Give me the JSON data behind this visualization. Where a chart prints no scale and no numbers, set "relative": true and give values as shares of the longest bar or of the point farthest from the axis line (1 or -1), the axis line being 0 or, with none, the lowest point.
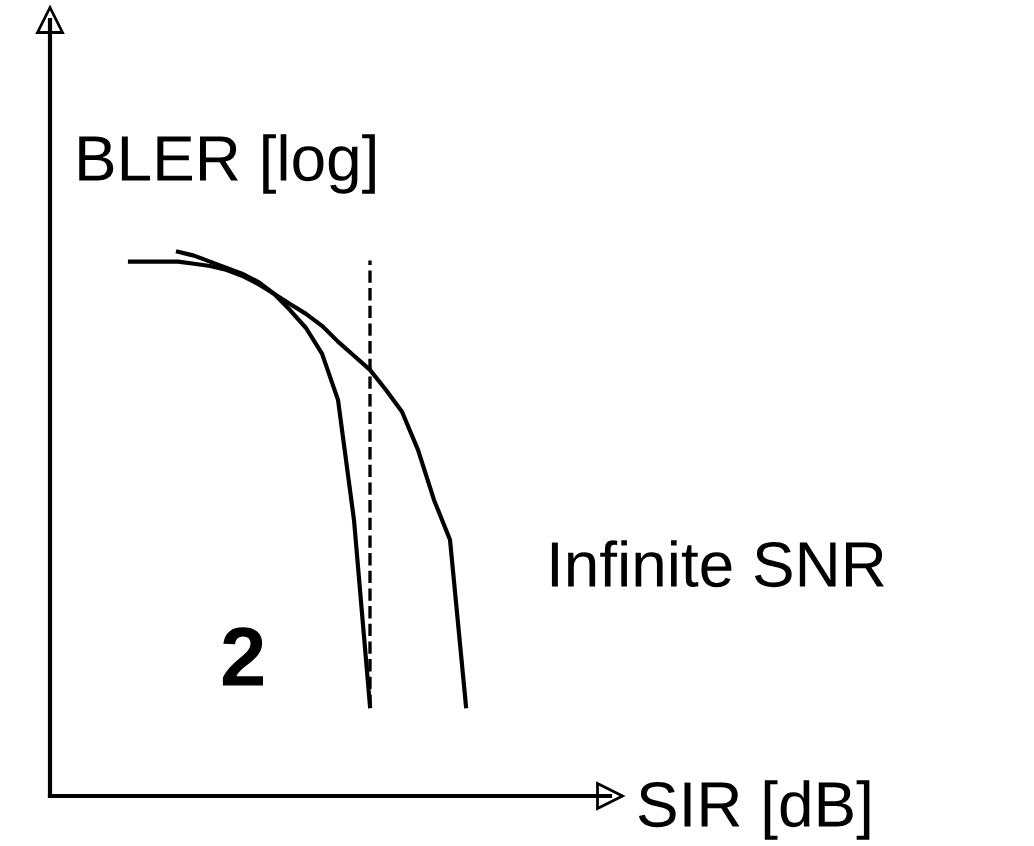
{
  "chart_data": {
    "type": "line",
    "relative": true,
    "xlabel": "SIR [dB]",
    "ylabel": "BLER [log]",
    "annotations": [
      "Infinite SNR",
      "2"
    ],
    "categories": [
      null,
      null,
      null,
      null,
      null,
      null,
      null,
      null,
      null,
      null,
      null,
      null,
      null,
      null,
      null,
      null,
      null,
      null,
      null,
      null,
      null,
      null,
      null,
      null,
      null,
      null,
      null,
      null,
      null,
      null,
      null,
      null,
      null,
      null,
      null
    ],
    "series": [
      {
        "color": "#000000",
        "values": [
          null,
          null,
          null,
          null,
          null,
          0.982,
          0.982,
          0.982,
          0.982,
          0.978,
          0.974,
          0.967,
          0.956,
          0.941,
          0.923,
          0.893,
          0.86,
          0.813,
          0.728,
          0.507,
          0.165,
          null,
          null,
          null,
          null,
          null,
          null,
          null,
          null,
          null,
          null,
          null,
          null,
          null,
          null
        ]
      },
      {
        "color": "#000000",
        "values": [
          null,
          null,
          null,
          null,
          null,
          null,
          null,
          null,
          1.0,
          0.993,
          0.982,
          0.971,
          0.96,
          0.945,
          0.923,
          0.904,
          0.886,
          0.864,
          0.835,
          0.809,
          0.783,
          0.746,
          0.706,
          0.636,
          0.544,
          0.471,
          0.165,
          null,
          null,
          null,
          null,
          null,
          null,
          null,
          null
        ]
      }
    ],
    "line_style": "solid",
    "marker": "none",
    "legend": false
  }
}
